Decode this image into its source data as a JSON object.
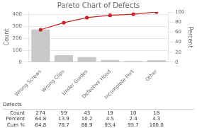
{
  "chart_data": {
    "type": "bar",
    "title": "Pareto Chart of Defects",
    "categories": [
      "Wrong Screws",
      "Wrong Clips",
      "Under Guides",
      "Defective Hood",
      "Incomplete Part",
      "Other"
    ],
    "series": [
      {
        "type": "bar",
        "color": "#c8c8c8",
        "values": [
          274,
          59,
          43,
          19,
          10,
          18
        ]
      },
      {
        "type": "line",
        "axis": "y2",
        "color": "#cc2222",
        "marker": "circle",
        "values": [
          64.8,
          78.7,
          88.9,
          93.4,
          95.7,
          100.0
        ]
      }
    ],
    "ylabel": "Count",
    "y2label": "Percent",
    "ylim": [
      0,
      420
    ],
    "yticks": [
      0,
      100,
      200,
      300,
      400
    ],
    "y2lim": [
      0,
      100
    ],
    "y2ticks": [
      0,
      20,
      40,
      60,
      80,
      100
    ],
    "grid": true,
    "table": {
      "title": "Defects",
      "rows": [
        {
          "name": "Count",
          "values": [
            274,
            59,
            43,
            19,
            10,
            18
          ]
        },
        {
          "name": "Percent",
          "values": [
            64.8,
            13.9,
            10.2,
            4.5,
            2.4,
            4.3
          ]
        },
        {
          "name": "Cum %",
          "values": [
            64.8,
            78.7,
            88.9,
            93.4,
            95.7,
            100.0
          ],
          "value_labels": [
            "64.8",
            "78.7",
            "88.9",
            "93.4",
            "95.7",
            "100.0"
          ]
        }
      ]
    }
  }
}
